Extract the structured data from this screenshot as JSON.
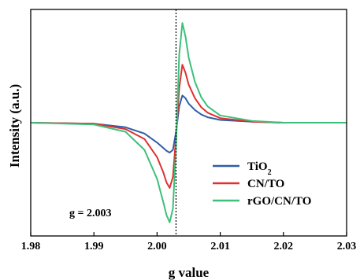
{
  "chart_data": {
    "type": "line",
    "xlabel": "g value",
    "ylabel": "Intensity (a.u.)",
    "xlim": [
      1.98,
      2.03
    ],
    "ylim": [
      -1.25,
      1.25
    ],
    "x_ticks": [
      "1.98",
      "1.99",
      "2.00",
      "2.01",
      "2.02",
      "2.03"
    ],
    "y_ticks_shown": false,
    "grid": false,
    "legend_position": "lower-right",
    "reference_line": {
      "x": 2.003,
      "style": "dotted",
      "label": "g = 2.003"
    },
    "series": [
      {
        "name": "TiO",
        "name_subscript": "2",
        "color": "#2e5ea8",
        "x": [
          1.98,
          1.99,
          1.995,
          1.998,
          2.0,
          2.001,
          2.0015,
          2.002,
          2.0025,
          2.003,
          2.0035,
          2.004,
          2.0045,
          2.005,
          2.006,
          2.007,
          2.008,
          2.01,
          2.015,
          2.02,
          2.025,
          2.03
        ],
        "y": [
          0.0,
          -0.01,
          -0.05,
          -0.12,
          -0.22,
          -0.28,
          -0.31,
          -0.33,
          -0.3,
          -0.1,
          0.18,
          0.3,
          0.27,
          0.21,
          0.14,
          0.09,
          0.06,
          0.03,
          0.01,
          0.0,
          0.0,
          0.0
        ]
      },
      {
        "name": "CN/TO",
        "color": "#e03030",
        "x": [
          1.98,
          1.99,
          1.995,
          1.998,
          2.0,
          2.001,
          2.0015,
          2.002,
          2.0025,
          2.003,
          2.0035,
          2.004,
          2.0045,
          2.005,
          2.006,
          2.007,
          2.008,
          2.01,
          2.015,
          2.02,
          2.025,
          2.03
        ],
        "y": [
          0.0,
          -0.01,
          -0.07,
          -0.18,
          -0.38,
          -0.55,
          -0.66,
          -0.72,
          -0.6,
          -0.15,
          0.38,
          0.64,
          0.55,
          0.42,
          0.27,
          0.17,
          0.11,
          0.05,
          0.01,
          0.0,
          0.0,
          0.0
        ]
      },
      {
        "name": "rGO/CN/TO",
        "color": "#3cc07a",
        "x": [
          1.98,
          1.99,
          1.995,
          1.998,
          2.0,
          2.001,
          2.0015,
          2.002,
          2.0025,
          2.003,
          2.0035,
          2.004,
          2.0045,
          2.005,
          2.006,
          2.007,
          2.008,
          2.01,
          2.015,
          2.02,
          2.025,
          2.03
        ],
        "y": [
          0.0,
          -0.02,
          -0.1,
          -0.3,
          -0.62,
          -0.88,
          -1.02,
          -1.1,
          -0.95,
          -0.25,
          0.75,
          1.1,
          0.95,
          0.72,
          0.45,
          0.28,
          0.18,
          0.08,
          0.02,
          0.0,
          0.0,
          0.0
        ]
      }
    ]
  }
}
